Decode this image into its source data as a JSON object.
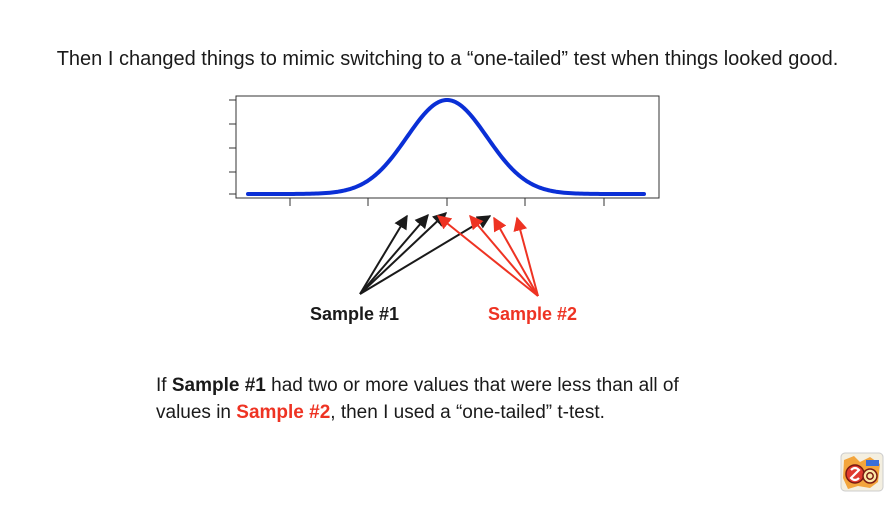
{
  "slide": {
    "heading": "Then I changed things to mimic switching to a “one-tailed” test when things looked good."
  },
  "labels": {
    "sample1": "Sample #1",
    "sample2": "Sample #2"
  },
  "caption": {
    "line1_prefix": "If ",
    "line1_sample": "Sample #1",
    "line1_suffix": " had two or more values that were less than all of",
    "line2_prefix": "values in ",
    "line2_sample": "Sample #2",
    "line2_suffix": ", then I used a “one-tailed” t-test."
  },
  "colors": {
    "curve": "#0a2fd6",
    "sample1": "#1a1a1a",
    "sample2": "#ee3323"
  },
  "logo": {
    "icon": "statquest-logo-icon"
  }
}
